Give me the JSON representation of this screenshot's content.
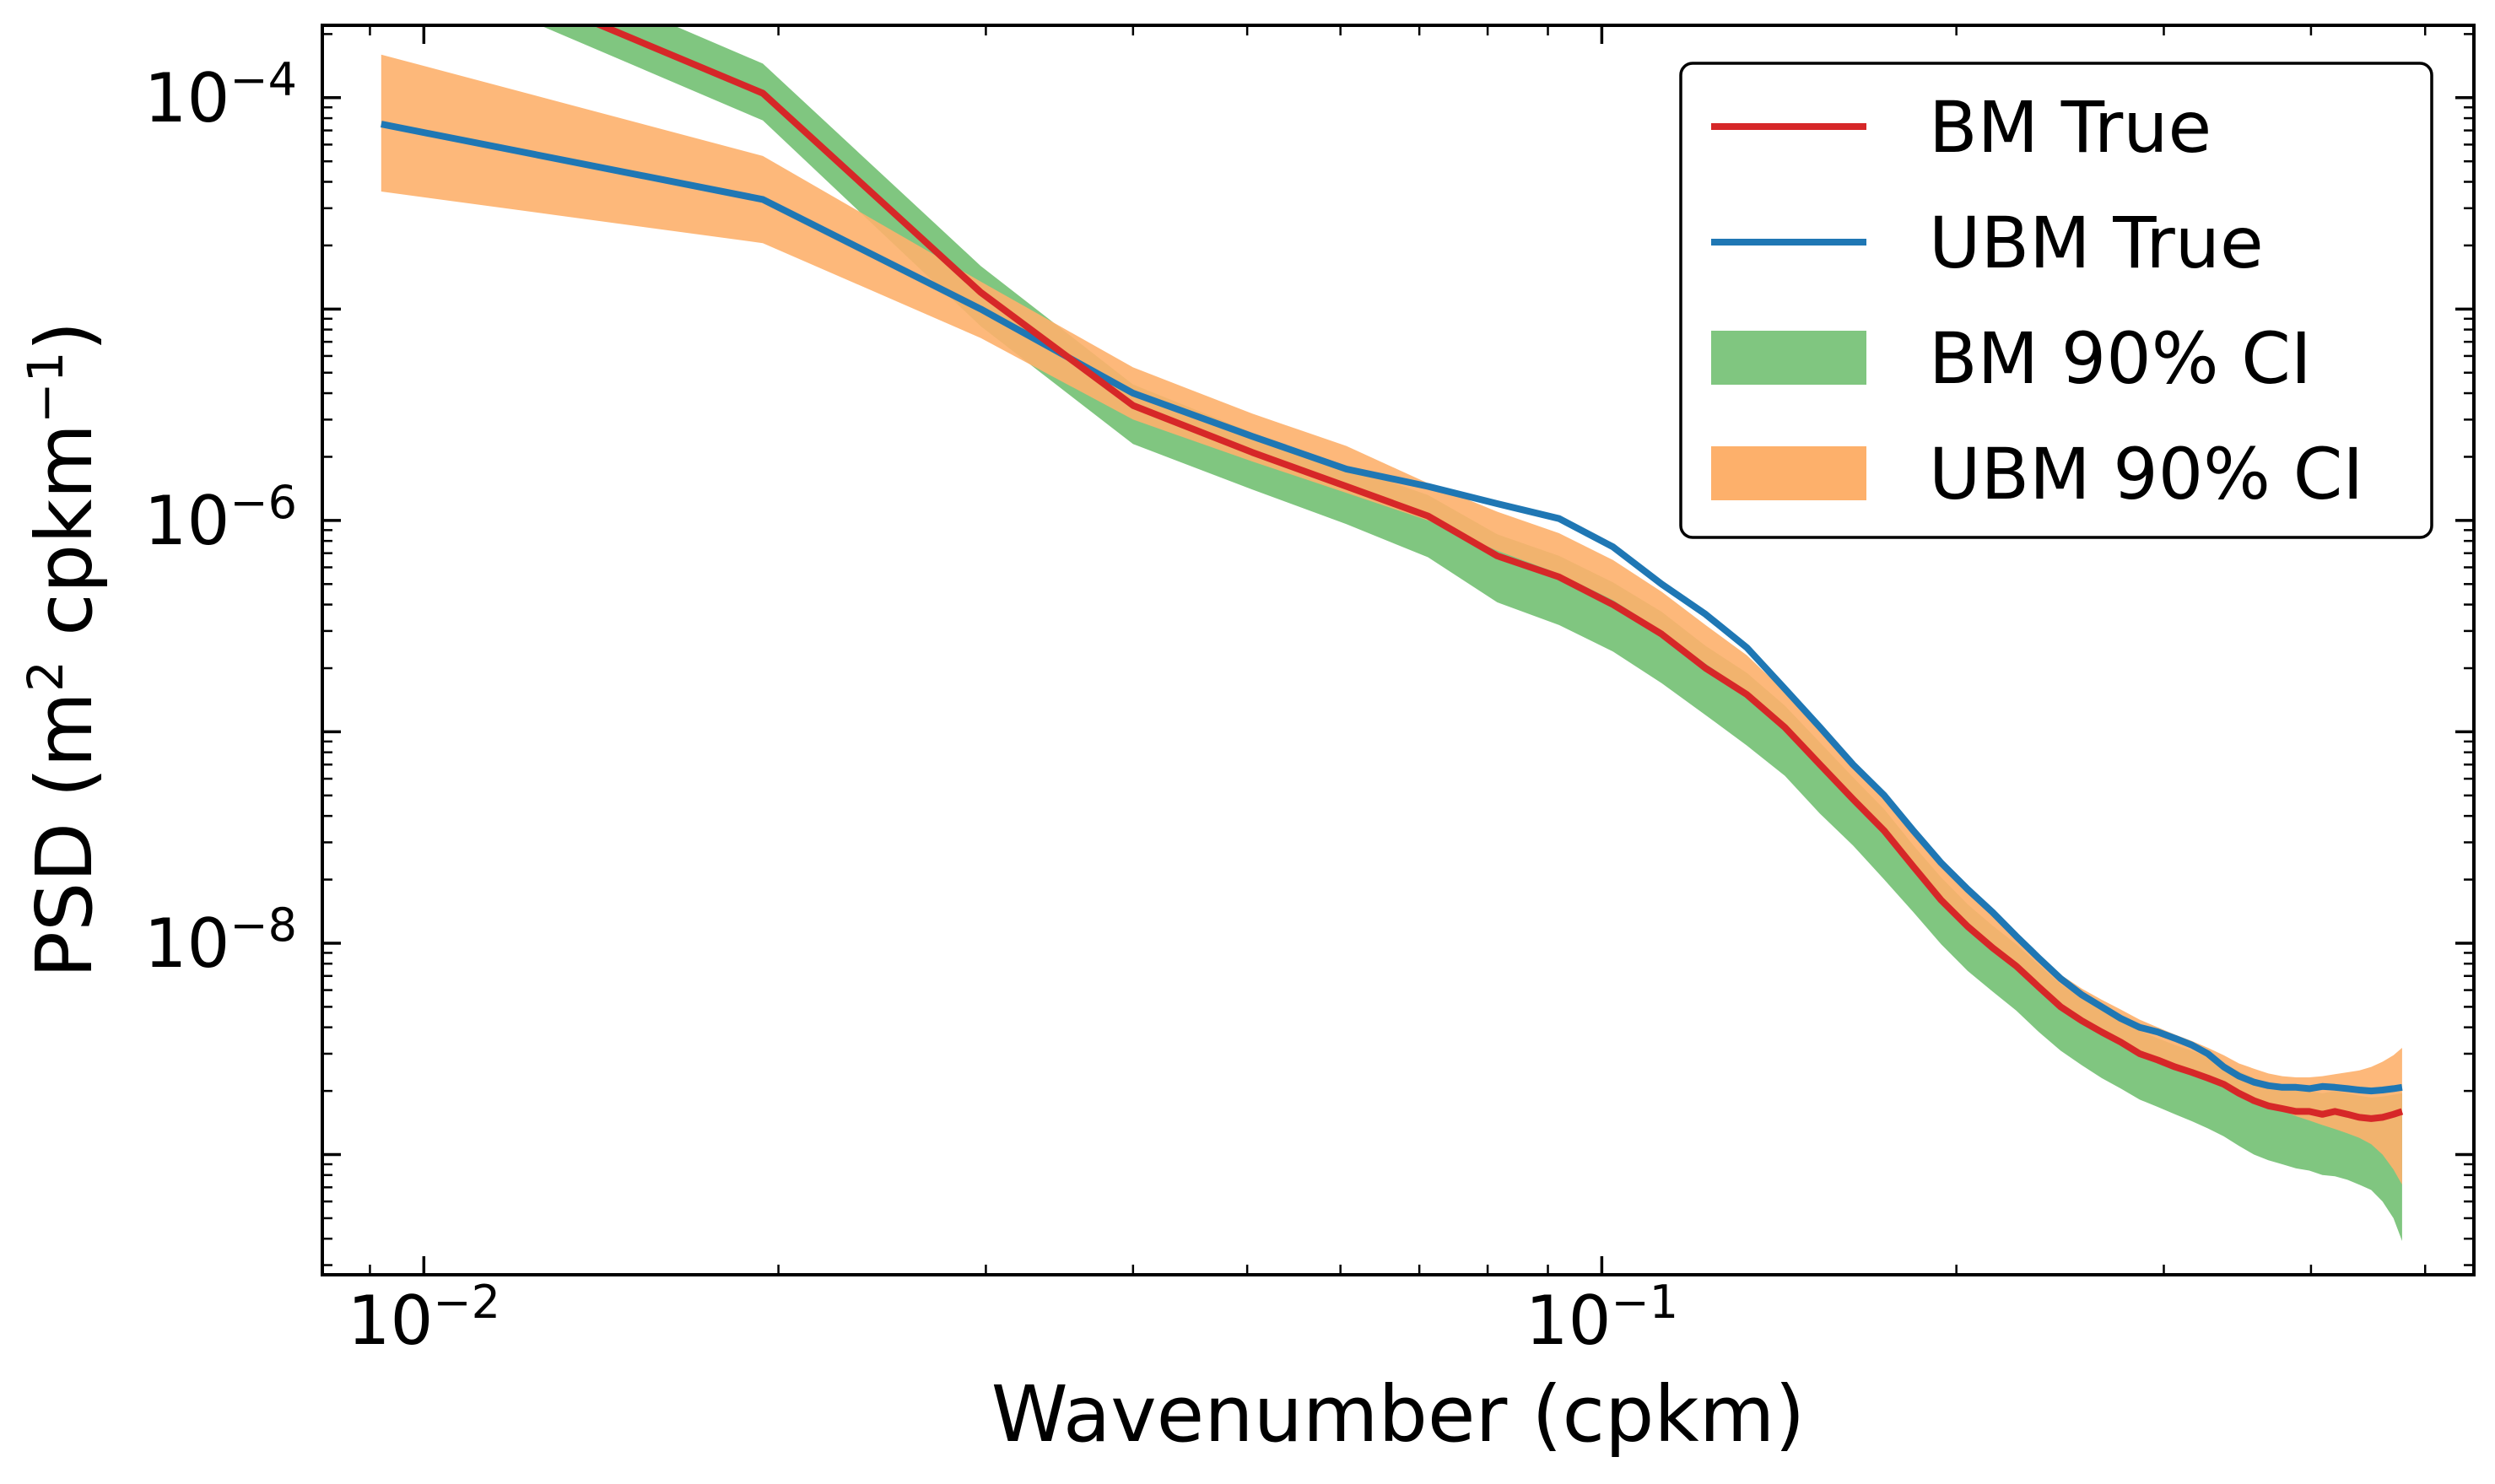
{
  "chart_data": {
    "type": "line",
    "title": "",
    "xlabel": "Wavenumber (cpkm)",
    "ylabel_parts": {
      "prefix": "PSD (m",
      "sup1": "2",
      "middle": " cpkm",
      "sup2": "−1",
      "suffix": ")"
    },
    "x_scale": "log",
    "y_scale": "log",
    "xlim": [
      0.0082,
      0.55
    ],
    "ylim": [
      2.7e-10,
      0.00022
    ],
    "x_ticks": [
      {
        "value": 0.01,
        "base": "10",
        "exp": "−2"
      },
      {
        "value": 0.1,
        "base": "10",
        "exp": "−1"
      }
    ],
    "y_ticks": [
      {
        "value": 0.0001,
        "base": "10",
        "exp": "−4"
      },
      {
        "value": 1e-06,
        "base": "10",
        "exp": "−6"
      },
      {
        "value": 1e-08,
        "base": "10",
        "exp": "−8"
      }
    ],
    "grid": false,
    "legend_position": "top-right",
    "x": [
      0.0092,
      0.0194,
      0.0297,
      0.04,
      0.0505,
      0.0607,
      0.0712,
      0.0815,
      0.092,
      0.1022,
      0.1124,
      0.1225,
      0.1328,
      0.143,
      0.1532,
      0.1634,
      0.1737,
      0.1839,
      0.1941,
      0.2044,
      0.2147,
      0.2248,
      0.235,
      0.2452,
      0.2555,
      0.2657,
      0.2759,
      0.2862,
      0.2965,
      0.3066,
      0.3168,
      0.327,
      0.3373,
      0.3475,
      0.3578,
      0.368,
      0.3782,
      0.3885,
      0.3987,
      0.409,
      0.4192,
      0.4295,
      0.4397,
      0.45,
      0.46,
      0.47,
      0.478
    ],
    "series": [
      {
        "name": "BM True",
        "kind": "line",
        "color": "#d62728",
        "values": [
          0.0006,
          0.000105,
          1.2e-05,
          3.5e-06,
          2.1e-06,
          1.45e-06,
          1.05e-06,
          6.8e-07,
          5.4e-07,
          4e-07,
          2.9e-07,
          2e-07,
          1.5e-07,
          1.05e-07,
          7e-08,
          4.8e-08,
          3.4e-08,
          2.3e-08,
          1.6e-08,
          1.2e-08,
          9.5e-09,
          7.8e-09,
          6.2e-09,
          5e-09,
          4.3e-09,
          3.8e-09,
          3.4e-09,
          3e-09,
          2.8e-09,
          2.6e-09,
          2.45e-09,
          2.3e-09,
          2.15e-09,
          1.95e-09,
          1.8e-09,
          1.7e-09,
          1.65e-09,
          1.6e-09,
          1.6e-09,
          1.55e-09,
          1.6e-09,
          1.55e-09,
          1.5e-09,
          1.48e-09,
          1.5e-09,
          1.55e-09,
          1.6e-09
        ]
      },
      {
        "name": "UBM True",
        "kind": "line",
        "color": "#1f77b4",
        "values": [
          7.5e-05,
          3.3e-05,
          1e-05,
          4e-06,
          2.5e-06,
          1.75e-06,
          1.45e-06,
          1.2e-06,
          1.02e-06,
          7.5e-07,
          5e-07,
          3.6e-07,
          2.5e-07,
          1.6e-07,
          1.05e-07,
          7e-08,
          5e-08,
          3.4e-08,
          2.4e-08,
          1.8e-08,
          1.4e-08,
          1.08e-08,
          8.5e-09,
          6.8e-09,
          5.7e-09,
          5e-09,
          4.4e-09,
          4e-09,
          3.8e-09,
          3.55e-09,
          3.3e-09,
          3e-09,
          2.6e-09,
          2.35e-09,
          2.2e-09,
          2.12e-09,
          2.08e-09,
          2.08e-09,
          2.05e-09,
          2.1e-09,
          2.08e-09,
          2.05e-09,
          2.02e-09,
          2e-09,
          2.02e-09,
          2.05e-09,
          2.08e-09
        ]
      }
    ],
    "bands": [
      {
        "name": "BM 90% CI",
        "color": "#80c680",
        "lower": [
          0.00046,
          7.8e-05,
          8.3e-06,
          2.3e-06,
          1.4e-06,
          9.6e-07,
          6.7e-07,
          4.1e-07,
          3.2e-07,
          2.4e-07,
          1.7e-07,
          1.2e-07,
          8.6e-08,
          6.2e-08,
          4.1e-08,
          2.9e-08,
          2e-08,
          1.4e-08,
          9.9e-09,
          7.4e-09,
          5.9e-09,
          4.8e-09,
          3.8e-09,
          3.1e-09,
          2.65e-09,
          2.3e-09,
          2.05e-09,
          1.82e-09,
          1.68e-09,
          1.55e-09,
          1.44e-09,
          1.33e-09,
          1.22e-09,
          1.1e-09,
          1e-09,
          9.4e-10,
          9e-10,
          8.6e-10,
          8.4e-10,
          8e-10,
          7.9e-10,
          7.6e-10,
          7.2e-10,
          6.8e-10,
          6e-10,
          5e-10,
          3.9e-10
        ],
        "upper": [
          0.00086,
          0.000145,
          1.6e-05,
          4.4e-06,
          2.6e-06,
          1.8e-06,
          1.32e-06,
          8.6e-07,
          6.8e-07,
          5.1e-07,
          3.7e-07,
          2.55e-07,
          1.9e-07,
          1.33e-07,
          8.9e-08,
          6.1e-08,
          4.3e-08,
          2.9e-08,
          2.05e-08,
          1.53e-08,
          1.21e-08,
          9.9e-09,
          7.9e-09,
          6.4e-09,
          5.5e-09,
          4.85e-09,
          4.3e-09,
          3.85e-09,
          3.55e-09,
          3.3e-09,
          3.1e-09,
          2.9e-09,
          2.7e-09,
          2.48e-09,
          2.3e-09,
          2.15e-09,
          2.08e-09,
          2.02e-09,
          2e-09,
          1.95e-09,
          2e-09,
          1.95e-09,
          1.9e-09,
          1.86e-09,
          1.88e-09,
          1.92e-09,
          1.95e-09
        ]
      },
      {
        "name": "UBM 90% CI",
        "color": "#fdb06b",
        "lower": [
          3.6e-05,
          2.05e-05,
          7.3e-06,
          3e-06,
          1.9e-06,
          1.35e-06,
          1e-06,
          7.2e-07,
          5.6e-07,
          4.2e-07,
          3e-07,
          2.1e-07,
          1.55e-07,
          1.08e-07,
          7.2e-08,
          4.9e-08,
          3.5e-08,
          2.35e-08,
          1.65e-08,
          1.23e-08,
          9.6e-09,
          7.9e-09,
          6.3e-09,
          5.1e-09,
          4.4e-09,
          3.9e-09,
          3.5e-09,
          3.1e-09,
          2.85e-09,
          2.65e-09,
          2.5e-09,
          2.35e-09,
          2.2e-09,
          2e-09,
          1.85e-09,
          1.72e-09,
          1.62e-09,
          1.52e-09,
          1.45e-09,
          1.38e-09,
          1.32e-09,
          1.26e-09,
          1.2e-09,
          1.12e-09,
          1e-09,
          8.5e-10,
          7.2e-10
        ],
        "upper": [
          0.00016,
          5.3e-05,
          1.35e-05,
          5.3e-06,
          3.2e-06,
          2.25e-06,
          1.5e-06,
          1.1e-06,
          8.7e-07,
          6.5e-07,
          4.6e-07,
          3.2e-07,
          2.3e-07,
          1.55e-07,
          1.05e-07,
          6.9e-08,
          4.9e-08,
          3.3e-08,
          2.3e-08,
          1.72e-08,
          1.35e-08,
          1.1e-08,
          8.8e-09,
          7.1e-09,
          6.1e-09,
          5.4e-09,
          4.85e-09,
          4.35e-09,
          4e-09,
          3.7e-09,
          3.45e-09,
          3.2e-09,
          2.95e-09,
          2.7e-09,
          2.55e-09,
          2.42e-09,
          2.35e-09,
          2.32e-09,
          2.32e-09,
          2.35e-09,
          2.4e-09,
          2.45e-09,
          2.5e-09,
          2.6e-09,
          2.75e-09,
          2.95e-09,
          3.2e-09
        ]
      }
    ],
    "legend": [
      {
        "label": "BM True",
        "kind": "line",
        "color": "#d62728"
      },
      {
        "label": "UBM True",
        "kind": "line",
        "color": "#1f77b4"
      },
      {
        "label": "BM 90% CI",
        "kind": "patch",
        "color": "#80c680"
      },
      {
        "label": "UBM 90% CI",
        "kind": "patch",
        "color": "#fdb06b"
      }
    ]
  }
}
